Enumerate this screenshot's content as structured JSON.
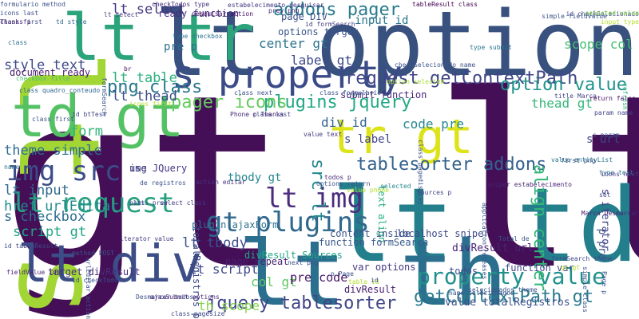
{
  "title": "",
  "words": [
    {
      "text": "gt lt",
      "color": "#440f56",
      "rotated": false
    },
    {
      "text": "lt option",
      "color": "#38517f",
      "rotated": false
    },
    {
      "text": "lt s",
      "color": "#a2d634",
      "rotated": true
    },
    {
      "text": "lt td",
      "color": "#247f8d",
      "rotated": false
    },
    {
      "text": "lt th",
      "color": "#2b6f8e",
      "rotated": false
    },
    {
      "text": "lt tr",
      "color": "#2ba47c",
      "rotated": false
    },
    {
      "text": "td gt",
      "color": "#55c165",
      "rotated": false
    },
    {
      "text": "tr gt",
      "color": "#dde319",
      "rotated": false
    },
    {
      "text": "lt div",
      "color": "#3c4d87",
      "rotated": false
    },
    {
      "text": "s property",
      "color": "#3b4b88",
      "rotated": false
    },
    {
      "text": "img src",
      "color": "#3c4c88",
      "rotated": false
    },
    {
      "text": "lt request",
      "color": "#26a07f",
      "rotated": false
    },
    {
      "text": "lt img",
      "color": "#4b2c7e",
      "rotated": false
    },
    {
      "text": "gt plugins",
      "color": "#31688e",
      "rotated": false
    },
    {
      "text": "property value",
      "color": "#22918c",
      "rotated": false
    },
    {
      "text": "getContextPath gt",
      "color": "#2a7a8e",
      "rotated": false
    },
    {
      "text": "jquery tablesorter",
      "color": "#3f4587",
      "rotated": false
    },
    {
      "text": "request getContextPath",
      "color": "#404688",
      "rotated": false
    },
    {
      "text": "tablesorter addons",
      "color": "#35618d",
      "rotated": false
    },
    {
      "text": "plugins jquery",
      "color": "#24a884",
      "rotated": false
    },
    {
      "text": "addons pager",
      "color": "#297b8e",
      "rotated": false
    },
    {
      "text": "option value",
      "color": "#20938c",
      "rotated": false
    },
    {
      "text": "pager icons",
      "color": "#65cb5e",
      "rotated": false
    },
    {
      "text": "src lt",
      "color": "#23898d",
      "rotated": true
    },
    {
      "text": "align center",
      "color": "#34b678",
      "rotated": true
    },
    {
      "text": "s url",
      "color": "#3f4788",
      "rotated": false
    },
    {
      "text": "png class",
      "color": "#2a788e",
      "rotated": false
    },
    {
      "text": "style text",
      "color": "#3e4a89",
      "rotated": false
    },
    {
      "text": "lt select",
      "color": "#453781",
      "rotated": false
    },
    {
      "text": "lt table",
      "color": "#2ab07f",
      "rotated": false
    },
    {
      "text": "lt thead",
      "color": "#3c4f8a",
      "rotated": false
    },
    {
      "text": "lt input",
      "color": "#30698e",
      "rotated": false
    },
    {
      "text": "form",
      "color": "#32b67a",
      "rotated": false
    },
    {
      "text": "theme simple",
      "color": "#2e6e8e",
      "rotated": false
    },
    {
      "text": "href urlEditar",
      "color": "#228c8d",
      "rotated": false
    },
    {
      "text": "s checkbox",
      "color": "#2e6d8e",
      "rotated": false
    },
    {
      "text": "script gt",
      "color": "#21a585",
      "rotated": false
    },
    {
      "text": "lt tbody",
      "color": "#3d4e8a",
      "rotated": false
    },
    {
      "text": "lt script",
      "color": "#3f4889",
      "rotated": false
    },
    {
      "text": "col gt",
      "color": "#5ec962",
      "rotated": false
    },
    {
      "text": "th scope",
      "color": "#84d44b",
      "rotated": false
    },
    {
      "text": "center gt",
      "color": "#2c728e",
      "rotated": false
    },
    {
      "text": "label gt",
      "color": "#3e4989",
      "rotated": false
    },
    {
      "text": "div id",
      "color": "#32658e",
      "rotated": false
    },
    {
      "text": "code pre",
      "color": "#24878e",
      "rotated": false
    },
    {
      "text": "thead gt",
      "color": "#35b779",
      "rotated": false
    },
    {
      "text": "scope col",
      "color": "#44bf70",
      "rotated": false
    },
    {
      "text": "input id",
      "color": "#2a768e",
      "rotated": false
    },
    {
      "text": "s label",
      "color": "#404387",
      "rotated": false
    },
    {
      "text": "tbody gt",
      "color": "#25848e",
      "rotated": false
    },
    {
      "text": "pre p",
      "color": "#2d708e",
      "rotated": false
    },
    {
      "text": "pre code",
      "color": "#471365",
      "rotated": false
    },
    {
      "text": "value totalRegistros",
      "color": "#3b528b",
      "rotated": false
    },
    {
      "text": "divResult url",
      "color": "#482576",
      "rotated": false
    },
    {
      "text": "p pre",
      "color": "#3b528b",
      "rotated": true
    },
    {
      "text": "s iterator",
      "color": "#404588",
      "rotated": true
    },
    {
      "text": "document ready",
      "color": "#481b6d",
      "rotated": false
    },
    {
      "text": "img",
      "color": "#3b528b",
      "rotated": false
    },
    {
      "text": "options target",
      "color": "#39568c",
      "rotated": false
    },
    {
      "text": "ready function",
      "color": "#472e7c",
      "rotated": false
    },
    {
      "text": "page DIV",
      "color": "#3a538b",
      "rotated": false
    },
    {
      "text": "text align",
      "color": "#2ab07f",
      "rotated": true
    },
    {
      "text": "function formSearch",
      "color": "#38588c",
      "rotated": false
    },
    {
      "text": "content inside",
      "color": "#3b528b",
      "rotated": false
    },
    {
      "text": "localhost sniper",
      "color": "#3e4989",
      "rotated": false
    },
    {
      "text": "divResult Sources",
      "color": "#20a486",
      "rotated": false
    },
    {
      "text": "totalRegistros p",
      "color": "#3e4989",
      "rotated": true
    },
    {
      "text": "page repeat",
      "color": "#482071",
      "rotated": false
    },
    {
      "text": "target divResult",
      "color": "#472d7b",
      "rotated": false
    },
    {
      "text": "use JQuery",
      "color": "#463480",
      "rotated": false
    },
    {
      "text": "plugin ajaxForm",
      "color": "#2d718e",
      "rotated": false
    },
    {
      "text": "submit function",
      "color": "#482677",
      "rotated": false
    },
    {
      "text": "var options",
      "color": "#453882",
      "rotated": false
    },
    {
      "text": "function var",
      "color": "#3f4788",
      "rotated": false
    },
    {
      "text": "todos",
      "color": "#3e4c8a",
      "rotated": false
    },
    {
      "text": "divResult",
      "color": "#481c6e",
      "rotated": false
    },
    {
      "text": "formulario method",
      "color": "#3b528b",
      "rotated": false
    },
    {
      "text": "icons last",
      "color": "#3b528b",
      "rotated": false
    },
    {
      "text": "class first",
      "color": "#3e4989",
      "rotated": false
    },
    {
      "text": "Thanks p",
      "color": "#482878",
      "rotated": false
    },
    {
      "text": "td style",
      "color": "#31688e",
      "rotated": false
    },
    {
      "text": "lt select",
      "color": "#453781",
      "rotated": false
    },
    {
      "text": "checkTodos type",
      "color": "#46327e",
      "rotated": false
    },
    {
      "text": "pesquisar action",
      "color": "#481467",
      "rotated": false
    },
    {
      "text": "estabelecimento pesquisar",
      "color": "#453781",
      "rotated": false
    },
    {
      "text": "prev png",
      "color": "#472c7a",
      "rotated": false
    },
    {
      "text": "tableResult class",
      "color": "#440154",
      "rotated": false
    },
    {
      "text": "id checkSelecionado",
      "color": "#3e4989",
      "rotated": false
    },
    {
      "text": "simple fieldValue",
      "color": "#39568c",
      "rotated": false
    },
    {
      "text": "selected value",
      "color": "#85d54a",
      "rotated": false
    },
    {
      "text": "input type",
      "color": "#b5de2b",
      "rotated": false
    },
    {
      "text": "id formSearch",
      "color": "#433e85",
      "rotated": false
    },
    {
      "text": "class",
      "color": "#2e6e8e",
      "rotated": false
    },
    {
      "text": "type checkbox",
      "color": "#2c728e",
      "rotated": false
    },
    {
      "text": "type submit",
      "color": "#2a788e",
      "rotated": false
    },
    {
      "text": "checkSelecionado name",
      "color": "#3b528b",
      "rotated": false
    },
    {
      "text": "br",
      "color": "#471063",
      "rotated": false
    },
    {
      "text": "option selected",
      "color": "#addc30",
      "rotated": false
    },
    {
      "text": "class formulario",
      "color": "#39558c",
      "rotated": false
    },
    {
      "text": "class next",
      "color": "#3b518b",
      "rotated": false
    },
    {
      "text": "icons first",
      "color": "#b8de29",
      "rotated": false
    },
    {
      "text": "class quadro_conteudo",
      "color": "#31668e",
      "rotated": false
    },
    {
      "text": "checkbox title",
      "color": "#4ac16d",
      "rotated": false
    },
    {
      "text": "formSearch",
      "color": "#3b528b",
      "rotated": true
    },
    {
      "text": "id btTest",
      "color": "#3f4889",
      "rotated": false
    },
    {
      "text": "class first",
      "color": "#3b528b",
      "rotated": false
    },
    {
      "text": "class last",
      "color": "#3e4989",
      "rotated": false
    },
    {
      "text": "Phone p Thanks",
      "color": "#482979",
      "rotated": false
    },
    {
      "text": "title Marca",
      "color": "#404387",
      "rotated": false
    },
    {
      "text": "return false",
      "color": "#471164",
      "rotated": false
    },
    {
      "text": "param name",
      "color": "#404588",
      "rotated": false
    },
    {
      "text": "refresh",
      "color": "#2fb47c",
      "rotated": true
    },
    {
      "text": "s param",
      "color": "#3e4c8a",
      "rotated": false
    },
    {
      "text": "value text",
      "color": "#453781",
      "rotated": false
    },
    {
      "text": "class pagedisplay",
      "color": "#3b528b",
      "rotated": true
    },
    {
      "text": "value entityList",
      "color": "#2a768e",
      "rotated": false
    },
    {
      "text": "first png",
      "color": "#3b528b",
      "rotated": false
    },
    {
      "text": "type text",
      "color": "#2c728e",
      "rotated": false
    },
    {
      "text": "icons next",
      "color": "#433e85",
      "rotated": false
    },
    {
      "text": "set",
      "color": "#3e4989",
      "rotated": false
    },
    {
      "text": "Marca Desmarcar",
      "color": "#482475",
      "rotated": false
    },
    {
      "text": "todos p",
      "color": "#472a7a",
      "rotated": false
    },
    {
      "text": "selected",
      "color": "#23888e",
      "rotated": false
    },
    {
      "text": "name",
      "color": "#2b748e",
      "rotated": false
    },
    {
      "text": "part",
      "color": "#39568c",
      "rotated": false
    },
    {
      "text": "de registros",
      "color": "#3b528b",
      "rotated": false
    },
    {
      "text": "class prev",
      "color": "#3b528b",
      "rotated": false
    },
    {
      "text": "select class",
      "color": "#453882",
      "rotated": false
    },
    {
      "text": "action editar",
      "color": "#463480",
      "rotated": false
    },
    {
      "text": "value phone",
      "color": "#b5de2b",
      "rotated": false
    },
    {
      "text": "Sources p",
      "color": "#404387",
      "rotated": false
    },
    {
      "text": "sniper estabelecimento",
      "color": "#482475",
      "rotated": false
    },
    {
      "text": "options return",
      "color": "#3b528b",
      "rotated": false
    },
    {
      "text": "id tableResult",
      "color": "#3e4989",
      "rotated": false
    },
    {
      "text": "iterator value",
      "color": "#433e85",
      "rotated": false
    },
    {
      "text": "method POST",
      "color": "#3b528b",
      "rotated": false
    },
    {
      "text": "id checkTodos",
      "color": "#3b528b",
      "rotated": false
    },
    {
      "text": "urlEditar action",
      "color": "#3b528b",
      "rotated": true
    },
    {
      "text": "class pagesize",
      "color": "#3e4989",
      "rotated": false
    },
    {
      "text": "fieldValue id",
      "color": "#482475",
      "rotated": false
    },
    {
      "text": "Desmarcar todos",
      "color": "#3b528b",
      "rotated": false
    },
    {
      "text": "ajaxSubmit options",
      "color": "#482576",
      "rotated": false
    },
    {
      "text": "next png",
      "color": "#3b528b",
      "rotated": false
    },
    {
      "text": "p Page",
      "color": "#3b528b",
      "rotated": false
    },
    {
      "text": "table id",
      "color": "#b5de2b",
      "rotated": false
    },
    {
      "text": "name selecionados",
      "color": "#3b528b",
      "rotated": false
    },
    {
      "text": "selecionados theme",
      "color": "#3b528b",
      "rotated": false
    },
    {
      "text": "formSearch theme",
      "color": "#3e4989",
      "rotated": false
    },
    {
      "text": "gt gt",
      "color": "#b5de2b",
      "rotated": false
    },
    {
      "text": "Total de",
      "color": "#3b528b",
      "rotated": false
    },
    {
      "text": "application releases",
      "color": "#3b528b",
      "rotated": true
    },
    {
      "text": "simple class",
      "color": "#3b528b",
      "rotated": true
    },
    {
      "text": "Page p",
      "color": "#3b528b",
      "rotated": true
    },
    {
      "text": "id",
      "color": "#3e4989",
      "rotated": false
    }
  ]
}
